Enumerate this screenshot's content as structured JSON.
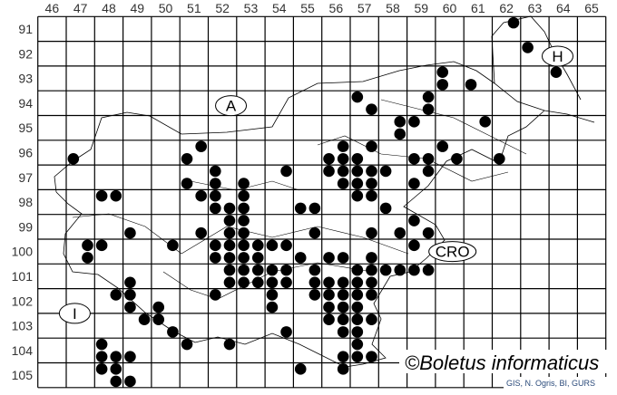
{
  "map": {
    "columns": [
      46,
      47,
      48,
      49,
      50,
      51,
      52,
      53,
      54,
      55,
      56,
      57,
      58,
      59,
      60,
      61,
      62,
      63,
      64,
      65
    ],
    "rows": [
      91,
      92,
      93,
      94,
      95,
      96,
      97,
      98,
      99,
      100,
      101,
      102,
      103,
      104,
      105
    ],
    "country_labels": [
      {
        "text": "A",
        "col": 52.8,
        "row": 94.6
      },
      {
        "text": "H",
        "col": 64.3,
        "row": 92.6
      },
      {
        "text": "I",
        "col": 47.3,
        "row": 103.0
      },
      {
        "text": "CRO",
        "col": 60.6,
        "row": 100.5
      }
    ],
    "watermark": "©Boletus informaticus",
    "credit": "GIS, N. Ogris, BI, GURS",
    "dot_color": "#000000",
    "records": [
      [
        62.75,
        91.25
      ],
      [
        63.25,
        92.25
      ],
      [
        64.25,
        93.25
      ],
      [
        60.25,
        93.25
      ],
      [
        60.25,
        93.75
      ],
      [
        61.25,
        93.75
      ],
      [
        57.25,
        94.25
      ],
      [
        59.75,
        94.25
      ],
      [
        57.75,
        94.75
      ],
      [
        59.75,
        94.75
      ],
      [
        58.75,
        95.25
      ],
      [
        59.25,
        95.25
      ],
      [
        61.75,
        95.25
      ],
      [
        58.75,
        95.75
      ],
      [
        56.75,
        96.25
      ],
      [
        57.75,
        96.25
      ],
      [
        60.25,
        96.25
      ],
      [
        51.75,
        96.25
      ],
      [
        56.25,
        96.75
      ],
      [
        56.75,
        96.75
      ],
      [
        57.25,
        96.75
      ],
      [
        59.25,
        96.75
      ],
      [
        59.75,
        96.75
      ],
      [
        60.75,
        96.75
      ],
      [
        62.25,
        96.75
      ],
      [
        47.25,
        96.75
      ],
      [
        51.25,
        96.75
      ],
      [
        56.25,
        97.25
      ],
      [
        56.75,
        97.25
      ],
      [
        57.25,
        97.25
      ],
      [
        57.75,
        97.25
      ],
      [
        58.25,
        97.25
      ],
      [
        59.75,
        97.25
      ],
      [
        52.25,
        97.25
      ],
      [
        54.75,
        97.25
      ],
      [
        56.75,
        97.75
      ],
      [
        57.25,
        97.75
      ],
      [
        57.75,
        97.75
      ],
      [
        59.25,
        97.75
      ],
      [
        51.25,
        97.75
      ],
      [
        52.25,
        97.75
      ],
      [
        53.25,
        97.75
      ],
      [
        57.25,
        98.25
      ],
      [
        57.75,
        98.25
      ],
      [
        48.25,
        98.25
      ],
      [
        48.75,
        98.25
      ],
      [
        51.75,
        98.25
      ],
      [
        52.25,
        98.25
      ],
      [
        53.25,
        98.25
      ],
      [
        55.75,
        98.75
      ],
      [
        58.25,
        98.75
      ],
      [
        52.25,
        98.75
      ],
      [
        52.75,
        98.75
      ],
      [
        53.25,
        98.75
      ],
      [
        55.25,
        98.75
      ],
      [
        59.25,
        99.25
      ],
      [
        52.75,
        99.25
      ],
      [
        53.25,
        99.25
      ],
      [
        55.75,
        99.75
      ],
      [
        57.75,
        99.75
      ],
      [
        58.75,
        99.75
      ],
      [
        59.75,
        99.75
      ],
      [
        49.25,
        99.75
      ],
      [
        51.75,
        99.75
      ],
      [
        52.75,
        99.75
      ],
      [
        53.25,
        99.75
      ],
      [
        59.25,
        100.25
      ],
      [
        47.75,
        100.25
      ],
      [
        48.25,
        100.25
      ],
      [
        50.75,
        100.25
      ],
      [
        52.25,
        100.25
      ],
      [
        52.75,
        100.25
      ],
      [
        53.25,
        100.25
      ],
      [
        53.75,
        100.25
      ],
      [
        54.25,
        100.25
      ],
      [
        54.75,
        100.25
      ],
      [
        56.25,
        100.75
      ],
      [
        56.75,
        100.75
      ],
      [
        57.75,
        100.75
      ],
      [
        47.75,
        100.75
      ],
      [
        52.25,
        100.75
      ],
      [
        52.75,
        100.75
      ],
      [
        53.25,
        100.75
      ],
      [
        53.75,
        100.75
      ],
      [
        55.25,
        100.75
      ],
      [
        55.75,
        101.25
      ],
      [
        57.25,
        101.25
      ],
      [
        57.75,
        101.25
      ],
      [
        58.25,
        101.25
      ],
      [
        58.75,
        101.25
      ],
      [
        59.25,
        101.25
      ],
      [
        59.75,
        101.25
      ],
      [
        52.75,
        101.25
      ],
      [
        53.25,
        101.25
      ],
      [
        53.75,
        101.25
      ],
      [
        54.25,
        101.25
      ],
      [
        54.75,
        101.25
      ],
      [
        55.75,
        101.75
      ],
      [
        56.25,
        101.75
      ],
      [
        56.75,
        101.75
      ],
      [
        57.25,
        101.75
      ],
      [
        57.75,
        101.75
      ],
      [
        49.25,
        101.75
      ],
      [
        52.75,
        101.75
      ],
      [
        53.25,
        101.75
      ],
      [
        53.75,
        101.75
      ],
      [
        54.25,
        101.75
      ],
      [
        54.75,
        101.75
      ],
      [
        55.75,
        102.25
      ],
      [
        56.25,
        102.25
      ],
      [
        56.75,
        102.25
      ],
      [
        57.25,
        102.25
      ],
      [
        57.75,
        102.25
      ],
      [
        48.75,
        102.25
      ],
      [
        49.25,
        102.25
      ],
      [
        52.25,
        102.25
      ],
      [
        54.25,
        102.25
      ],
      [
        56.25,
        102.75
      ],
      [
        56.75,
        102.75
      ],
      [
        57.25,
        102.75
      ],
      [
        49.25,
        102.75
      ],
      [
        50.25,
        102.75
      ],
      [
        54.25,
        102.75
      ],
      [
        56.25,
        103.25
      ],
      [
        56.75,
        103.25
      ],
      [
        57.25,
        103.25
      ],
      [
        57.75,
        103.25
      ],
      [
        49.75,
        103.25
      ],
      [
        50.25,
        103.25
      ],
      [
        56.75,
        103.75
      ],
      [
        57.25,
        103.75
      ],
      [
        50.75,
        103.75
      ],
      [
        54.75,
        103.75
      ],
      [
        57.25,
        104.25
      ],
      [
        48.25,
        104.25
      ],
      [
        51.25,
        104.25
      ],
      [
        52.75,
        104.25
      ],
      [
        56.75,
        104.75
      ],
      [
        57.25,
        104.75
      ],
      [
        57.75,
        104.75
      ],
      [
        48.25,
        104.75
      ],
      [
        48.75,
        104.75
      ],
      [
        49.25,
        104.75
      ],
      [
        56.75,
        105.25
      ],
      [
        48.25,
        105.25
      ],
      [
        48.75,
        105.25
      ],
      [
        55.25,
        105.25
      ],
      [
        48.75,
        105.75
      ],
      [
        49.25,
        105.75
      ]
    ]
  }
}
